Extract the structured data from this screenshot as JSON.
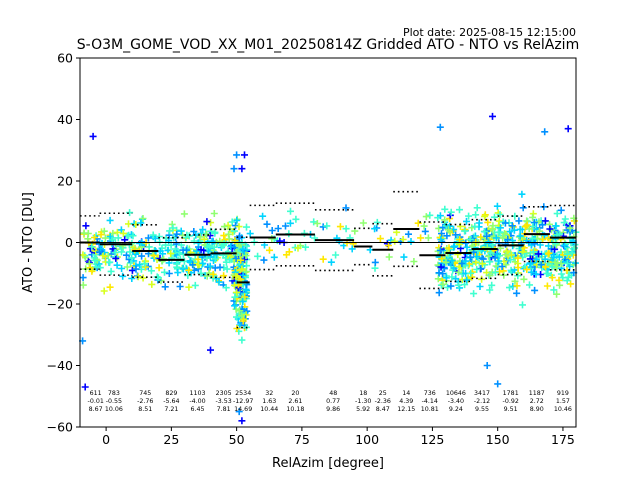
{
  "plot_date": "Plot date: 2025-08-15 12:15:00",
  "chart_data": {
    "type": "scatter",
    "title": "S-O3M_GOME_VOD_XX_M01_20250814Z Gridded ATO - NTO vs RelAzim",
    "xlabel": "RelAzim [degree]",
    "ylabel": "ATO - NTO [DU]",
    "xlim": [
      -10,
      180
    ],
    "ylim": [
      -60,
      60
    ],
    "xticks": [
      0,
      25,
      50,
      75,
      100,
      125,
      150,
      175
    ],
    "yticks": [
      -60,
      -40,
      -20,
      0,
      20,
      40,
      60
    ],
    "grid": false,
    "zero_line": 0,
    "colors": {
      "scatter_palette": [
        "#0000ff",
        "#0090ff",
        "#00d4ff",
        "#40ffd0",
        "#90ff70",
        "#d8ff20",
        "#ffe800"
      ],
      "mean": "#000000",
      "std": "#000000"
    },
    "bins": [
      {
        "x0": -10,
        "x1": -2.5,
        "n": "611",
        "mean": -0.01,
        "std": 8.67
      },
      {
        "x0": -2.5,
        "x1": 10,
        "n": "783",
        "mean": -0.55,
        "std": 10.06
      },
      {
        "x0": 10,
        "x1": 20,
        "n": "745",
        "mean": -2.76,
        "std": 8.51
      },
      {
        "x0": 20,
        "x1": 30,
        "n": "829",
        "mean": -5.64,
        "std": 7.21
      },
      {
        "x0": 30,
        "x1": 40,
        "n": "1103",
        "mean": -4.0,
        "std": 6.45
      },
      {
        "x0": 40,
        "x1": 50,
        "n": "2305",
        "mean": -3.53,
        "std": 7.81
      },
      {
        "x0": 50,
        "x1": 55,
        "n": "2534",
        "mean": -12.97,
        "std": 14.69
      },
      {
        "x0": 55,
        "x1": 65,
        "n": "32",
        "mean": 1.63,
        "std": 10.44
      },
      {
        "x0": 65,
        "x1": 80,
        "n": "20",
        "mean": 2.61,
        "std": 10.18
      },
      {
        "x0": 80,
        "x1": 95,
        "n": "48",
        "mean": 0.77,
        "std": 9.86
      },
      {
        "x0": 95,
        "x1": 102,
        "n": "18",
        "mean": -1.3,
        "std": 5.92
      },
      {
        "x0": 102,
        "x1": 110,
        "n": "25",
        "mean": -2.36,
        "std": 8.47
      },
      {
        "x0": 110,
        "x1": 120,
        "n": "14",
        "mean": 4.39,
        "std": 12.15
      },
      {
        "x0": 120,
        "x1": 130,
        "n": "736",
        "mean": -4.14,
        "std": 10.81
      },
      {
        "x0": 130,
        "x1": 140,
        "n": "10646",
        "mean": -3.4,
        "std": 9.24
      },
      {
        "x0": 140,
        "x1": 150,
        "n": "3417",
        "mean": -2.12,
        "std": 9.55
      },
      {
        "x0": 150,
        "x1": 160,
        "n": "1781",
        "mean": -0.92,
        "std": 9.51
      },
      {
        "x0": 160,
        "x1": 170,
        "n": "1187",
        "mean": 2.72,
        "std": 8.9
      },
      {
        "x0": 170,
        "x1": 180,
        "n": "919",
        "mean": 1.57,
        "std": 10.46
      }
    ],
    "bin_label_x": [
      -4,
      3,
      15,
      25,
      35,
      45,
      52.5,
      62.5,
      72.5,
      87,
      98.5,
      106,
      115,
      124,
      134,
      144,
      155,
      165,
      175
    ],
    "scatter_regions": [
      {
        "x0": -9,
        "x1": 52,
        "y_center": -3,
        "y_spread": 11,
        "count": 380
      },
      {
        "x0": 49,
        "x1": 54,
        "y_center": -13,
        "y_spread": 18,
        "count": 170
      },
      {
        "x0": 55,
        "x1": 125,
        "y_center": 1,
        "y_spread": 9,
        "count": 75
      },
      {
        "x0": 127,
        "x1": 180,
        "y_center": -2,
        "y_spread": 13,
        "count": 560
      }
    ],
    "outliers": [
      {
        "x": -5,
        "y": 34.5
      },
      {
        "x": -9,
        "y": -32
      },
      {
        "x": -8,
        "y": -47
      },
      {
        "x": 50,
        "y": 28.5
      },
      {
        "x": 53,
        "y": 28.5
      },
      {
        "x": 49,
        "y": 24
      },
      {
        "x": 52,
        "y": 24
      },
      {
        "x": 128,
        "y": 37.5
      },
      {
        "x": 148,
        "y": 41
      },
      {
        "x": 168,
        "y": 36
      },
      {
        "x": 177,
        "y": 37
      },
      {
        "x": 51,
        "y": -55
      },
      {
        "x": 52,
        "y": -58
      },
      {
        "x": 150,
        "y": -46
      },
      {
        "x": 40,
        "y": -35
      },
      {
        "x": 146,
        "y": -40
      }
    ]
  }
}
